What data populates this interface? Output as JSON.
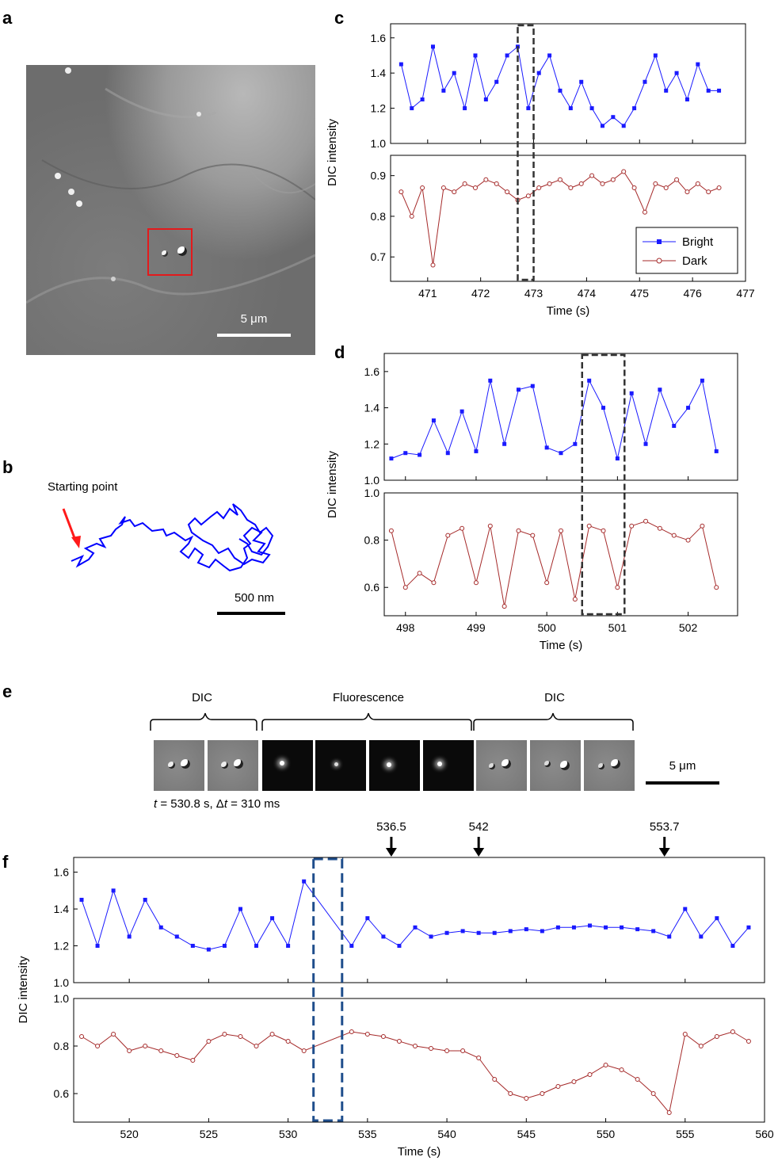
{
  "panels": {
    "a": {
      "letter": "a",
      "scale_bar_label": "5 μm"
    },
    "b": {
      "letter": "b",
      "start_label": "Starting point",
      "scale_bar_label": "500 nm"
    },
    "c": {
      "letter": "c"
    },
    "d": {
      "letter": "d"
    },
    "e": {
      "letter": "e",
      "group_labels": [
        "DIC",
        "Fluorescence",
        "DIC"
      ],
      "caption_t": "t",
      "caption_eq1": " = 530.8 s, Δ",
      "caption_dt": "t",
      "caption_eq2": " = 310 ms",
      "scale_bar_label": "5 μm"
    },
    "f": {
      "letter": "f",
      "arrow_labels": [
        "536.5",
        "542",
        "553.7"
      ]
    }
  },
  "colors": {
    "bright": "#1a1aff",
    "dark": "#a52a2a",
    "highlight_box": "#333333",
    "f_box": "#1f4e8c",
    "roi_box": "#e31a1c",
    "trajectory": "#0000ff",
    "arrow": "#ff1a1a"
  },
  "chart_data": [
    {
      "type": "line",
      "id": "c",
      "xlabel": "Time (s)",
      "ylabel": "DIC intensity",
      "xlim": [
        470.3,
        477
      ],
      "xticks": [
        "471",
        "472",
        "473",
        "474",
        "475",
        "476",
        "477"
      ],
      "highlight": [
        472.7,
        473.0
      ],
      "legend_position": "bottom-right",
      "top": {
        "ylim": [
          1.0,
          1.68
        ],
        "yticks": [
          "1.0",
          "1.2",
          "1.4",
          "1.6"
        ]
      },
      "bottom": {
        "ylim": [
          0.64,
          0.95
        ],
        "yticks": [
          "0.7",
          "0.8",
          "0.9"
        ]
      },
      "series": [
        {
          "name": "Bright",
          "marker": "square",
          "panel": "top",
          "x": [
            470.5,
            470.7,
            470.9,
            471.1,
            471.3,
            471.5,
            471.7,
            471.9,
            472.1,
            472.3,
            472.5,
            472.7,
            472.9,
            473.1,
            473.3,
            473.5,
            473.7,
            473.9,
            474.1,
            474.3,
            474.5,
            474.7,
            474.9,
            475.1,
            475.3,
            475.5,
            475.7,
            475.9,
            476.1,
            476.3,
            476.5
          ],
          "y": [
            1.45,
            1.2,
            1.25,
            1.55,
            1.3,
            1.4,
            1.2,
            1.5,
            1.25,
            1.35,
            1.5,
            1.55,
            1.2,
            1.4,
            1.5,
            1.3,
            1.2,
            1.35,
            1.2,
            1.1,
            1.15,
            1.1,
            1.2,
            1.35,
            1.5,
            1.3,
            1.4,
            1.25,
            1.45,
            1.3,
            1.3
          ]
        },
        {
          "name": "Dark",
          "marker": "circle",
          "panel": "bottom",
          "x": [
            470.5,
            470.7,
            470.9,
            471.1,
            471.3,
            471.5,
            471.7,
            471.9,
            472.1,
            472.3,
            472.5,
            472.7,
            472.9,
            473.1,
            473.3,
            473.5,
            473.7,
            473.9,
            474.1,
            474.3,
            474.5,
            474.7,
            474.9,
            475.1,
            475.3,
            475.5,
            475.7,
            475.9,
            476.1,
            476.3,
            476.5
          ],
          "y": [
            0.86,
            0.8,
            0.87,
            0.68,
            0.87,
            0.86,
            0.88,
            0.87,
            0.89,
            0.88,
            0.86,
            0.84,
            0.85,
            0.87,
            0.88,
            0.89,
            0.87,
            0.88,
            0.9,
            0.88,
            0.89,
            0.91,
            0.87,
            0.81,
            0.88,
            0.87,
            0.89,
            0.86,
            0.88,
            0.86,
            0.87
          ]
        }
      ]
    },
    {
      "type": "line",
      "id": "d",
      "xlabel": "Time (s)",
      "ylabel": "DIC intensity",
      "xlim": [
        497.7,
        502.7
      ],
      "xticks": [
        "498",
        "499",
        "500",
        "501",
        "502"
      ],
      "highlight": [
        500.5,
        501.1
      ],
      "top": {
        "ylim": [
          1.0,
          1.7
        ],
        "yticks": [
          "1.0",
          "1.2",
          "1.4",
          "1.6"
        ]
      },
      "bottom": {
        "ylim": [
          0.48,
          1.0
        ],
        "yticks": [
          "0.6",
          "0.8",
          "1.0"
        ]
      },
      "series": [
        {
          "name": "Bright",
          "marker": "square",
          "panel": "top",
          "x": [
            497.8,
            498.0,
            498.2,
            498.4,
            498.6,
            498.8,
            499.0,
            499.2,
            499.4,
            499.6,
            499.8,
            500.0,
            500.2,
            500.4,
            500.6,
            500.8,
            501.0,
            501.2,
            501.4,
            501.6,
            501.8,
            502.0,
            502.2,
            502.4
          ],
          "y": [
            1.12,
            1.15,
            1.14,
            1.33,
            1.15,
            1.38,
            1.16,
            1.55,
            1.2,
            1.5,
            1.52,
            1.18,
            1.15,
            1.2,
            1.55,
            1.4,
            1.12,
            1.48,
            1.2,
            1.5,
            1.3,
            1.4,
            1.55,
            1.16
          ]
        },
        {
          "name": "Dark",
          "marker": "circle",
          "panel": "bottom",
          "x": [
            497.8,
            498.0,
            498.2,
            498.4,
            498.6,
            498.8,
            499.0,
            499.2,
            499.4,
            499.6,
            499.8,
            500.0,
            500.2,
            500.4,
            500.6,
            500.8,
            501.0,
            501.2,
            501.4,
            501.6,
            501.8,
            502.0,
            502.2,
            502.4
          ],
          "y": [
            0.84,
            0.6,
            0.66,
            0.62,
            0.82,
            0.85,
            0.62,
            0.86,
            0.52,
            0.84,
            0.82,
            0.62,
            0.84,
            0.55,
            0.86,
            0.84,
            0.6,
            0.86,
            0.88,
            0.85,
            0.82,
            0.8,
            0.86,
            0.6
          ]
        }
      ]
    },
    {
      "type": "line",
      "id": "f",
      "xlabel": "Time (s)",
      "ylabel": "DIC intensity",
      "xlim": [
        516.5,
        560
      ],
      "xticks": [
        "520",
        "525",
        "530",
        "535",
        "540",
        "545",
        "550",
        "555",
        "560"
      ],
      "highlight": [
        531.6,
        533.4
      ],
      "arrows_x": [
        536.5,
        542,
        553.7
      ],
      "top": {
        "ylim": [
          1.0,
          1.68
        ],
        "yticks": [
          "1.0",
          "1.2",
          "1.4",
          "1.6"
        ]
      },
      "bottom": {
        "ylim": [
          0.48,
          1.0
        ],
        "yticks": [
          "0.6",
          "0.8",
          "1.0"
        ]
      },
      "series": [
        {
          "name": "Bright",
          "marker": "square",
          "panel": "top",
          "x": [
            517,
            518,
            519,
            520,
            521,
            522,
            523,
            524,
            525,
            526,
            527,
            528,
            529,
            530,
            531,
            534,
            535,
            536,
            537,
            538,
            539,
            540,
            541,
            542,
            543,
            544,
            545,
            546,
            547,
            548,
            549,
            550,
            551,
            552,
            553,
            554,
            555,
            556,
            557,
            558,
            559
          ],
          "y": [
            1.45,
            1.2,
            1.5,
            1.25,
            1.45,
            1.3,
            1.25,
            1.2,
            1.18,
            1.2,
            1.4,
            1.2,
            1.35,
            1.2,
            1.55,
            1.2,
            1.35,
            1.25,
            1.2,
            1.3,
            1.25,
            1.27,
            1.28,
            1.27,
            1.27,
            1.28,
            1.29,
            1.28,
            1.3,
            1.3,
            1.31,
            1.3,
            1.3,
            1.29,
            1.28,
            1.25,
            1.4,
            1.25,
            1.35,
            1.2,
            1.3
          ]
        },
        {
          "name": "Dark",
          "marker": "circle",
          "panel": "bottom",
          "x": [
            517,
            518,
            519,
            520,
            521,
            522,
            523,
            524,
            525,
            526,
            527,
            528,
            529,
            530,
            531,
            534,
            535,
            536,
            537,
            538,
            539,
            540,
            541,
            542,
            543,
            544,
            545,
            546,
            547,
            548,
            549,
            550,
            551,
            552,
            553,
            554,
            555,
            556,
            557,
            558,
            559
          ],
          "y": [
            0.84,
            0.8,
            0.85,
            0.78,
            0.8,
            0.78,
            0.76,
            0.74,
            0.82,
            0.85,
            0.84,
            0.8,
            0.85,
            0.82,
            0.78,
            0.86,
            0.85,
            0.84,
            0.82,
            0.8,
            0.79,
            0.78,
            0.78,
            0.75,
            0.66,
            0.6,
            0.58,
            0.6,
            0.63,
            0.65,
            0.68,
            0.72,
            0.7,
            0.66,
            0.6,
            0.52,
            0.85,
            0.8,
            0.84,
            0.86,
            0.82
          ]
        }
      ]
    }
  ]
}
